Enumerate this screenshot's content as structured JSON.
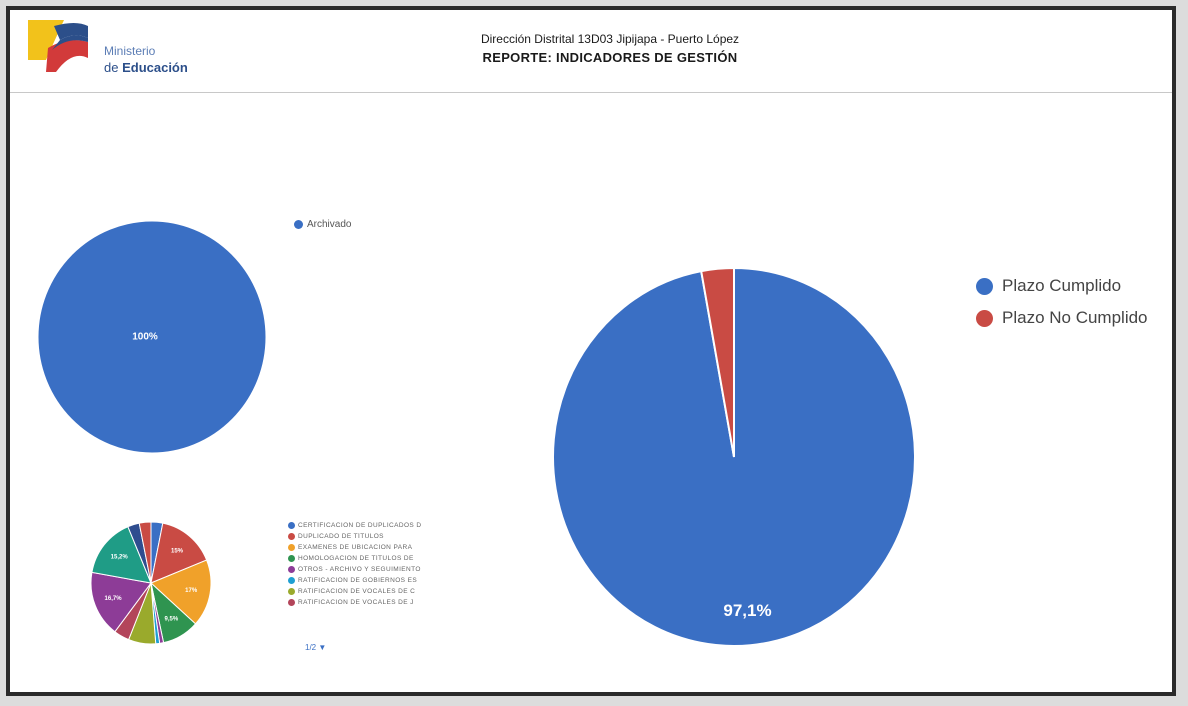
{
  "header": {
    "logo_line1": "Ministerio",
    "logo_line2_prefix": "de ",
    "logo_line2_bold": "Educación",
    "subtitle": "Dirección Distrital 13D03 Jipijapa - Puerto López",
    "title": "REPORTE: INDICADORES DE GESTIÓN"
  },
  "colors": {
    "blue": "#3a6fc4",
    "red": "#c94b44",
    "orange": "#f0a12a",
    "green": "#2f9450",
    "purple": "#8d3c97",
    "cyan": "#1f9fd2",
    "olive": "#9aaa2c",
    "brick": "#b3455a",
    "teal": "#1f9c86",
    "navy": "#2f4d8f"
  },
  "chart_data": [
    {
      "type": "pie",
      "legend": [
        "Archivado"
      ],
      "values": [
        100
      ],
      "slice_labels": [
        "100%"
      ]
    },
    {
      "type": "pie",
      "legend": [
        "Plazo Cumplido",
        "Plazo No Cumplido"
      ],
      "values": [
        97.1,
        2.9
      ],
      "slice_labels": [
        "97,1%",
        ""
      ]
    },
    {
      "type": "pie",
      "legend": [
        "CERTIFICACIÓN DE DUPLICADOS D",
        "DUPLICADO DE TÍTULOS",
        "EXÁMENES DE UBICACIÓN PARA",
        "HOMOLOGACIÓN DE TÍTULOS DE",
        "OTROS - ARCHIVO Y SEGUIMIENTO",
        "RATIFICACIÓN DE GOBIERNOS ES",
        "RATIFICACIÓN DE VOCALES DE C",
        "RATIFICACIÓN DE VOCALES DE J"
      ],
      "values": [
        3,
        15,
        17,
        9.5,
        1,
        1,
        7,
        4,
        16.7,
        15.2,
        3,
        3
      ],
      "slice_labels": [
        "",
        "15%",
        "17%",
        "9,5%",
        "",
        "",
        "",
        "",
        "16,7%",
        "15,2%",
        "",
        ""
      ],
      "pager": "1/2 ▼"
    }
  ]
}
